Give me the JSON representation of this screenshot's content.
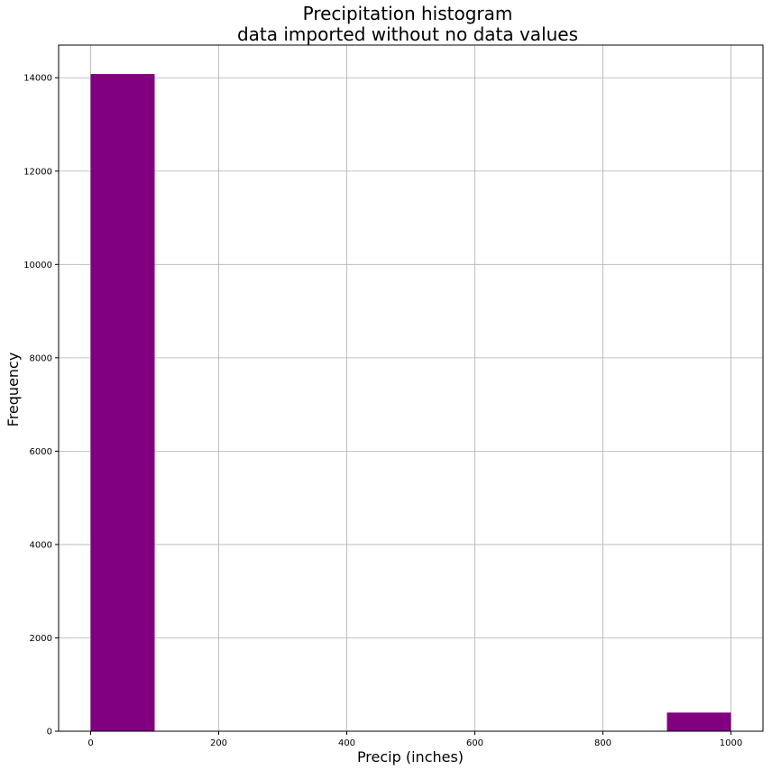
{
  "chart_data": {
    "type": "bar",
    "title_line1": "Precipitation histogram",
    "title_line2": "data imported without no data values",
    "xlabel": "Precip (inches)",
    "ylabel": "Frequency",
    "xlim": [
      -50,
      1050
    ],
    "ylim": [
      0,
      14700
    ],
    "xticks": [
      0,
      200,
      400,
      600,
      800,
      1000
    ],
    "yticks": [
      0,
      2000,
      4000,
      6000,
      8000,
      10000,
      12000,
      14000
    ],
    "grid": true,
    "bar_color": "#800080",
    "bins": [
      {
        "x0": 0,
        "x1": 100,
        "value": 14080
      },
      {
        "x0": 100,
        "x1": 200,
        "value": 0
      },
      {
        "x0": 200,
        "x1": 300,
        "value": 0
      },
      {
        "x0": 300,
        "x1": 400,
        "value": 0
      },
      {
        "x0": 400,
        "x1": 500,
        "value": 0
      },
      {
        "x0": 500,
        "x1": 600,
        "value": 0
      },
      {
        "x0": 600,
        "x1": 700,
        "value": 0
      },
      {
        "x0": 700,
        "x1": 800,
        "value": 0
      },
      {
        "x0": 800,
        "x1": 900,
        "value": 0
      },
      {
        "x0": 900,
        "x1": 1000,
        "value": 400
      }
    ]
  }
}
